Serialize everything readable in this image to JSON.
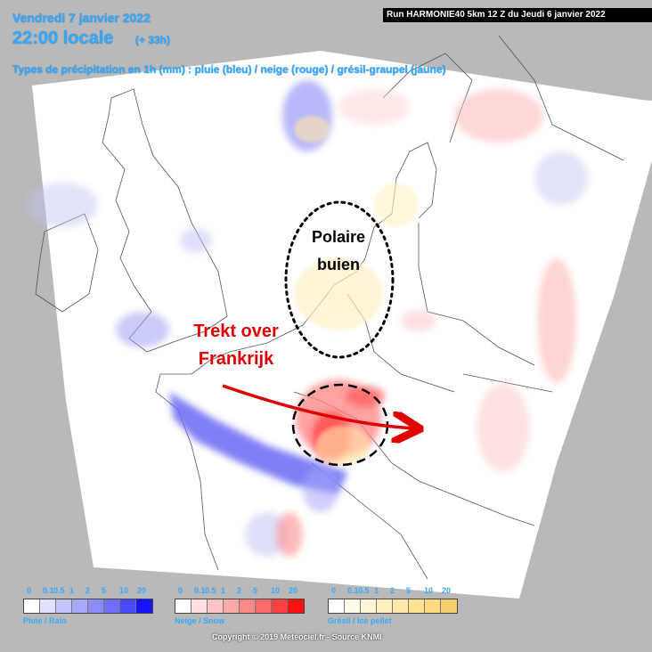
{
  "header": {
    "date": "Vendredi 7 janvier 2022",
    "time": "22:00 locale",
    "offset": "(+ 33h)",
    "description": "Types de précipitation en 1h (mm) : pluie (bleu) / neige (rouge) / grésil-graupel (jaune)",
    "run": "Run HARMONIE40 5km 12 Z du Jeudi 6 janvier 2022"
  },
  "annotations": {
    "polaire_line1": "Polaire",
    "polaire_line2": "buien",
    "trekt_line1": "Trekt over",
    "trekt_line2": "Frankrijk"
  },
  "legends": {
    "ticks": [
      "0",
      "0.1",
      "0.5",
      "1",
      "2",
      "5",
      "10",
      "20"
    ],
    "rain": {
      "name": "Pluie / Rain",
      "colors": [
        "#ffffff",
        "#e0e0ff",
        "#c4c4ff",
        "#a8a8ff",
        "#8c8cff",
        "#7070ff",
        "#4a4aff",
        "#1414ff"
      ]
    },
    "snow": {
      "name": "Neige / Snow",
      "colors": [
        "#ffffff",
        "#ffe0e0",
        "#ffc4c4",
        "#ffa8a8",
        "#ff8888",
        "#ff6a6a",
        "#ff4040",
        "#ff1010"
      ]
    },
    "ice": {
      "name": "Grésil / Ice pellet",
      "colors": [
        "#ffffff",
        "#fffbea",
        "#fff5d6",
        "#ffefc0",
        "#ffe8aa",
        "#ffe194",
        "#ffda80",
        "#f5cf6e"
      ]
    }
  },
  "copyright": "Copyright © 2019 Meteociel.fr - Source KNMI",
  "colors": {
    "title": "#33aaff",
    "annotation": "#e00000",
    "rain": "#4a4aff",
    "snow": "#ff4040"
  }
}
